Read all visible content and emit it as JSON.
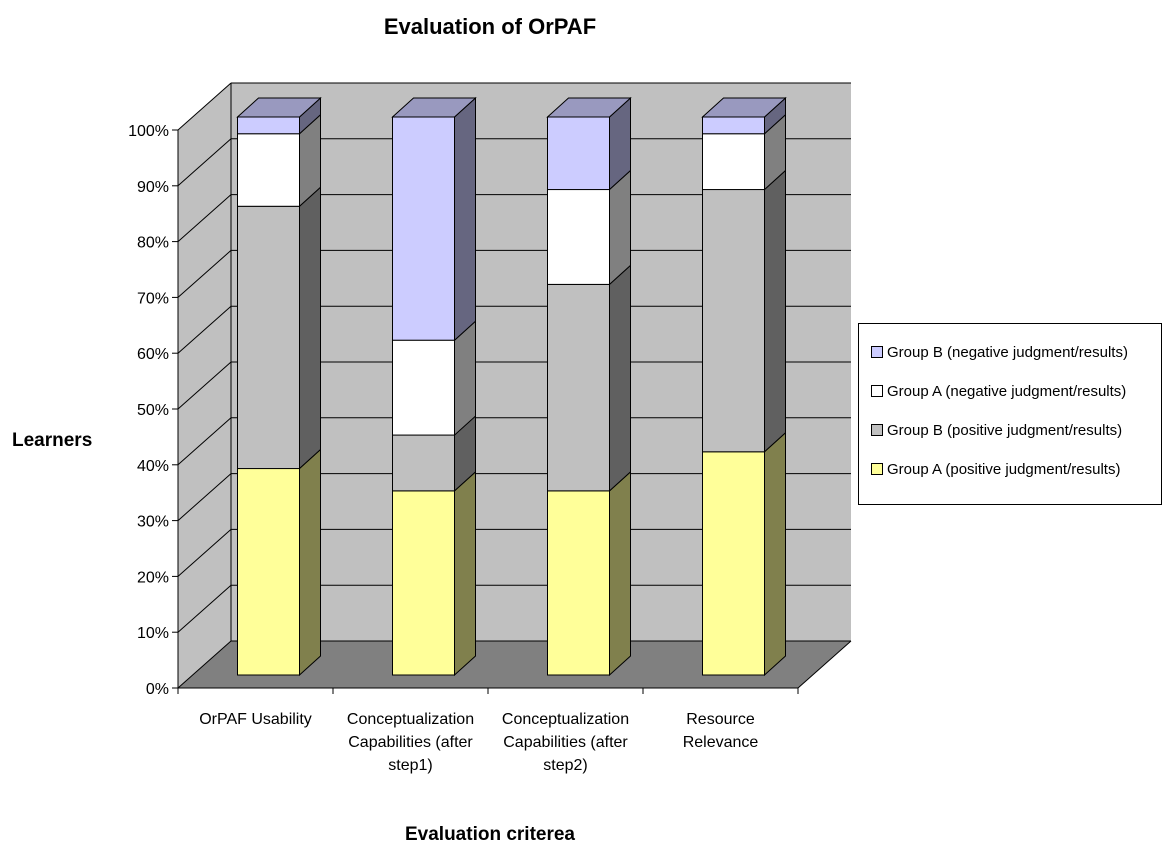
{
  "chart_data": {
    "type": "bar",
    "stacked": true,
    "percent_stacked": true,
    "three_d": true,
    "title": "Evaluation of OrPAF",
    "xlabel": "Evaluation criterea",
    "ylabel": "Learners",
    "ylim": [
      0,
      100
    ],
    "y_ticks": [
      "0%",
      "10%",
      "20%",
      "30%",
      "40%",
      "50%",
      "60%",
      "70%",
      "80%",
      "90%",
      "100%"
    ],
    "grid": true,
    "legend_position": "right",
    "categories": [
      "OrPAF Usability",
      "Conceptualization Capabilities (after step1)",
      "Conceptualization Capabilities (after step2)",
      "Resource Relevance"
    ],
    "category_lines": [
      [
        "OrPAF Usability"
      ],
      [
        "Conceptualization",
        "Capabilities (after",
        "step1)"
      ],
      [
        "Conceptualization",
        "Capabilities (after",
        "step2)"
      ],
      [
        "Resource",
        "Relevance"
      ]
    ],
    "series": [
      {
        "name": "Group A (positive judgment/results)",
        "color": "#FFFF99",
        "values": [
          37,
          33,
          33,
          40
        ]
      },
      {
        "name": "Group B (positive judgment/results)",
        "color": "#C0C0C0",
        "values": [
          47,
          10,
          37,
          47
        ]
      },
      {
        "name": "Group A (negative judgment/results)",
        "color": "#FFFFFF",
        "values": [
          13,
          17,
          17,
          10
        ]
      },
      {
        "name": "Group B (negative judgment/results)",
        "color": "#CCCCFF",
        "values": [
          3,
          40,
          13,
          3
        ]
      }
    ],
    "legend_order": [
      3,
      2,
      1,
      0
    ],
    "colors": {
      "back_wall": "#C0C0C0",
      "floor": "#808080",
      "side_wall": "#C0C0C0"
    }
  }
}
